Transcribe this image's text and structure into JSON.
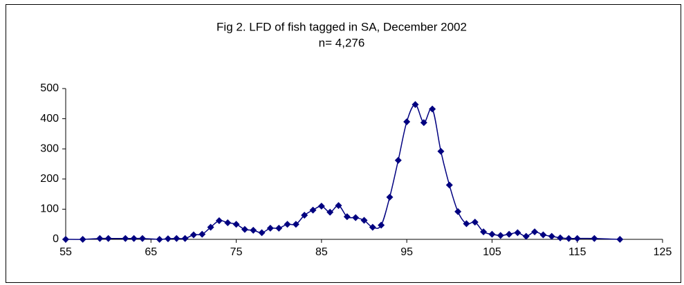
{
  "chart_data": {
    "type": "line",
    "title": "Fig 2. LFD of fish tagged in SA, December 2002",
    "subtitle": "n= 4,276",
    "x": [
      55,
      57,
      59,
      60,
      62,
      63,
      64,
      66,
      67,
      68,
      69,
      70,
      71,
      72,
      73,
      74,
      75,
      76,
      77,
      78,
      79,
      80,
      81,
      82,
      83,
      84,
      85,
      86,
      87,
      88,
      89,
      90,
      91,
      92,
      93,
      94,
      95,
      96,
      97,
      98,
      99,
      100,
      101,
      102,
      103,
      104,
      105,
      106,
      107,
      108,
      109,
      110,
      111,
      112,
      113,
      114,
      115,
      117,
      120
    ],
    "series": [
      {
        "name": "LFD",
        "color": "#000080",
        "values": [
          0,
          0,
          3,
          3,
          3,
          3,
          3,
          0,
          2,
          3,
          3,
          15,
          17,
          40,
          62,
          55,
          50,
          33,
          30,
          22,
          37,
          37,
          50,
          50,
          80,
          97,
          110,
          90,
          112,
          75,
          72,
          63,
          40,
          47,
          140,
          262,
          390,
          447,
          387,
          432,
          292,
          180,
          92,
          52,
          57,
          25,
          17,
          13,
          17,
          22,
          10,
          25,
          15,
          10,
          5,
          3,
          3,
          3,
          0
        ]
      }
    ],
    "xlim": [
      55,
      125
    ],
    "xticks": [
      55,
      65,
      75,
      85,
      95,
      105,
      115,
      125
    ],
    "ylim": [
      0,
      500
    ],
    "yticks": [
      0,
      100,
      200,
      300,
      400,
      500
    ],
    "grid": false,
    "smooth": true
  }
}
